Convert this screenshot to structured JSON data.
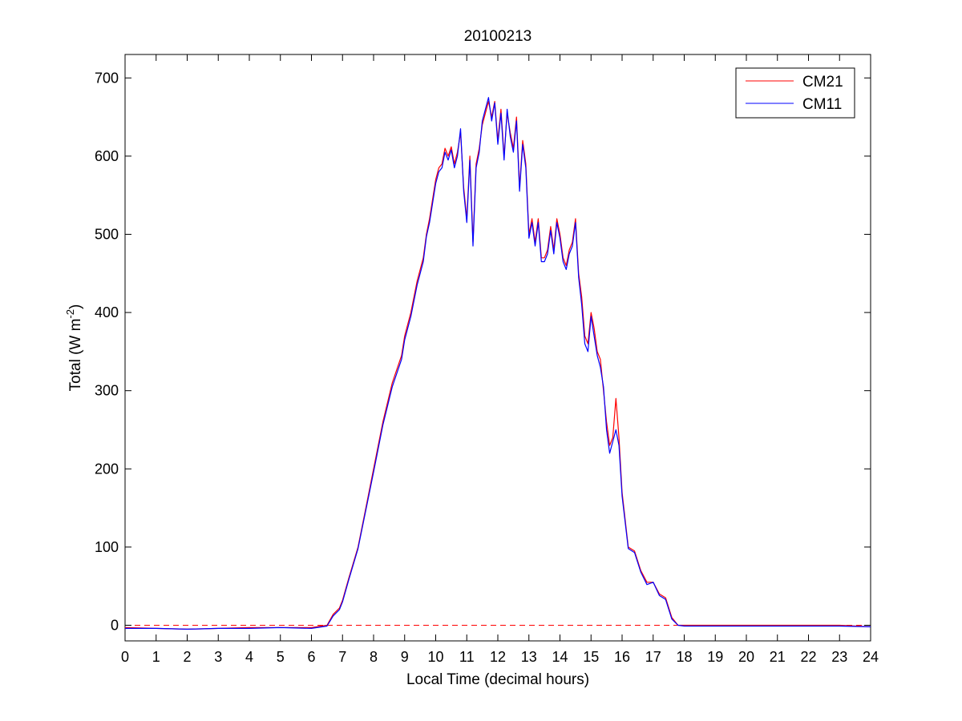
{
  "chart_data": {
    "type": "line",
    "title": "20100213",
    "xlabel": "Local Time (decimal hours)",
    "ylabel": {
      "prefix": "Total (W m",
      "superscript": "-2",
      "suffix": ")"
    },
    "xlim": [
      0,
      24
    ],
    "ylim": [
      -20,
      730
    ],
    "xticks": [
      0,
      1,
      2,
      3,
      4,
      5,
      6,
      7,
      8,
      9,
      10,
      11,
      12,
      13,
      14,
      15,
      16,
      17,
      18,
      19,
      20,
      21,
      22,
      23,
      24
    ],
    "yticks": [
      0,
      100,
      200,
      300,
      400,
      500,
      600,
      700
    ],
    "grid": false,
    "legend_position": "top-right",
    "reference_line": {
      "y": 0,
      "style": "dashed",
      "color": "#ff0000"
    },
    "series": [
      {
        "name": "CM21",
        "color": "#ff0000",
        "x": [
          0,
          1,
          2,
          3,
          4,
          5,
          6,
          6.5,
          6.7,
          6.9,
          7.0,
          7.2,
          7.5,
          7.8,
          8.0,
          8.3,
          8.6,
          8.9,
          9.0,
          9.2,
          9.4,
          9.6,
          9.7,
          9.8,
          10.0,
          10.1,
          10.2,
          10.3,
          10.4,
          10.5,
          10.6,
          10.7,
          10.8,
          10.9,
          11.0,
          11.1,
          11.2,
          11.3,
          11.4,
          11.5,
          11.6,
          11.7,
          11.8,
          11.9,
          12.0,
          12.1,
          12.2,
          12.3,
          12.4,
          12.5,
          12.6,
          12.7,
          12.8,
          12.9,
          13.0,
          13.1,
          13.2,
          13.3,
          13.4,
          13.5,
          13.6,
          13.7,
          13.8,
          13.9,
          14.0,
          14.1,
          14.2,
          14.3,
          14.4,
          14.5,
          14.6,
          14.7,
          14.8,
          14.9,
          15.0,
          15.1,
          15.2,
          15.3,
          15.4,
          15.5,
          15.6,
          15.7,
          15.8,
          15.9,
          16.0,
          16.2,
          16.4,
          16.6,
          16.8,
          17.0,
          17.2,
          17.4,
          17.6,
          17.8,
          18,
          19,
          20,
          21,
          22,
          23,
          24
        ],
        "y": [
          -3,
          -4,
          -5,
          -4,
          -3,
          -3,
          -3,
          0,
          14,
          22,
          32,
          60,
          100,
          160,
          200,
          260,
          310,
          345,
          370,
          400,
          440,
          470,
          500,
          520,
          570,
          585,
          590,
          610,
          600,
          612,
          590,
          605,
          630,
          560,
          520,
          600,
          490,
          590,
          610,
          640,
          655,
          670,
          650,
          670,
          620,
          660,
          600,
          655,
          630,
          610,
          650,
          560,
          620,
          590,
          500,
          520,
          490,
          520,
          470,
          470,
          480,
          510,
          480,
          520,
          500,
          470,
          460,
          480,
          490,
          520,
          450,
          420,
          370,
          360,
          400,
          380,
          350,
          340,
          300,
          260,
          230,
          240,
          290,
          240,
          170,
          100,
          95,
          70,
          55,
          55,
          40,
          35,
          10,
          0,
          0,
          0,
          0,
          0,
          0,
          0,
          -2
        ]
      },
      {
        "name": "CM11",
        "color": "#0000ff",
        "x": [
          0,
          1,
          2,
          3,
          4,
          5,
          6,
          6.5,
          6.7,
          6.9,
          7.0,
          7.2,
          7.5,
          7.8,
          8.0,
          8.3,
          8.6,
          8.9,
          9.0,
          9.2,
          9.4,
          9.6,
          9.7,
          9.8,
          10.0,
          10.1,
          10.2,
          10.3,
          10.4,
          10.5,
          10.6,
          10.7,
          10.8,
          10.9,
          11.0,
          11.1,
          11.2,
          11.3,
          11.4,
          11.5,
          11.6,
          11.7,
          11.8,
          11.9,
          12.0,
          12.1,
          12.2,
          12.3,
          12.4,
          12.5,
          12.6,
          12.7,
          12.8,
          12.9,
          13.0,
          13.1,
          13.2,
          13.3,
          13.4,
          13.5,
          13.6,
          13.7,
          13.8,
          13.9,
          14.0,
          14.1,
          14.2,
          14.3,
          14.4,
          14.5,
          14.6,
          14.7,
          14.8,
          14.9,
          15.0,
          15.1,
          15.2,
          15.3,
          15.4,
          15.5,
          15.6,
          15.7,
          15.8,
          15.9,
          16.0,
          16.2,
          16.4,
          16.6,
          16.8,
          17.0,
          17.2,
          17.4,
          17.6,
          17.8,
          18,
          19,
          20,
          21,
          22,
          23,
          24
        ],
        "y": [
          -4,
          -4,
          -5,
          -4,
          -4,
          -3,
          -4,
          -1,
          12,
          20,
          30,
          58,
          98,
          157,
          196,
          256,
          305,
          340,
          365,
          395,
          435,
          465,
          497,
          515,
          565,
          580,
          585,
          605,
          595,
          608,
          585,
          600,
          635,
          555,
          515,
          595,
          485,
          585,
          605,
          645,
          660,
          675,
          645,
          668,
          615,
          655,
          595,
          660,
          625,
          605,
          645,
          555,
          615,
          585,
          495,
          515,
          485,
          515,
          465,
          465,
          475,
          505,
          475,
          515,
          495,
          465,
          455,
          475,
          485,
          515,
          445,
          410,
          360,
          350,
          395,
          370,
          345,
          330,
          305,
          250,
          220,
          235,
          250,
          230,
          165,
          98,
          93,
          68,
          52,
          55,
          38,
          33,
          8,
          0,
          -1,
          -1,
          -1,
          -1,
          -1,
          -1,
          -2
        ]
      }
    ]
  }
}
